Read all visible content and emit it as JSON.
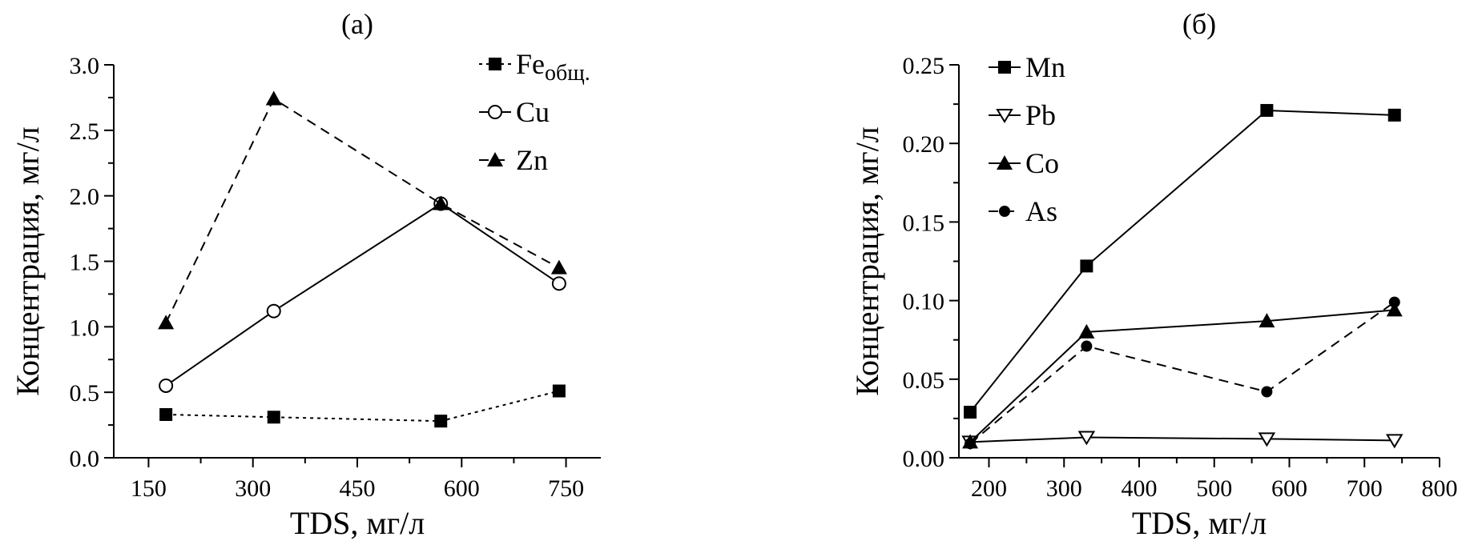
{
  "chart_data": [
    {
      "type": "line",
      "title": "(а)",
      "xlabel": "TDS, мг/л",
      "ylabel": "Концентрация, мг/л",
      "xlim": [
        100,
        800
      ],
      "ylim": [
        0,
        3.0
      ],
      "xticks": [
        150,
        300,
        450,
        600,
        750
      ],
      "xtick_labels": [
        "150",
        "300",
        "450",
        "600",
        "750"
      ],
      "yticks": [
        0,
        0.5,
        1.0,
        1.5,
        2.0,
        2.5,
        3.0
      ],
      "ytick_labels": [
        "0.0",
        "0.5",
        "1.0",
        "1.5",
        "2.0",
        "2.5",
        "3.0"
      ],
      "legend_position": "top-right",
      "x": [
        175,
        330,
        570,
        740
      ],
      "series": [
        {
          "name": "Fe",
          "name_sub": "общ.",
          "marker": "square-filled",
          "dash": "dotted",
          "values": [
            0.33,
            0.31,
            0.28,
            0.51
          ]
        },
        {
          "name": "Cu",
          "marker": "circle-open",
          "dash": "solid",
          "values": [
            0.55,
            1.12,
            1.94,
            1.33
          ]
        },
        {
          "name": "Zn",
          "marker": "triangle-filled",
          "dash": "dashed",
          "values": [
            1.03,
            2.74,
            1.94,
            1.45
          ]
        }
      ]
    },
    {
      "type": "line",
      "title": "(б)",
      "xlabel": "TDS, мг/л",
      "ylabel": "Концентрация, мг/л",
      "xlim": [
        160,
        800
      ],
      "ylim": [
        0,
        0.25
      ],
      "xticks": [
        200,
        300,
        400,
        500,
        600,
        700,
        800
      ],
      "xtick_labels": [
        "200",
        "300",
        "400",
        "500",
        "600",
        "700",
        "800"
      ],
      "yticks": [
        0,
        0.05,
        0.1,
        0.15,
        0.2,
        0.25
      ],
      "ytick_labels": [
        "0.00",
        "0.05",
        "0.10",
        "0.15",
        "0.20",
        "0.25"
      ],
      "legend_position": "top-left",
      "x": [
        175,
        330,
        570,
        740
      ],
      "series": [
        {
          "name": "Mn",
          "marker": "square-filled",
          "dash": "solid",
          "values": [
            0.029,
            0.122,
            0.221,
            0.218
          ]
        },
        {
          "name": "Pb",
          "marker": "triangle-down-open",
          "dash": "solid",
          "values": [
            0.01,
            0.013,
            0.012,
            0.011
          ]
        },
        {
          "name": "Co",
          "marker": "triangle-filled",
          "dash": "solid",
          "values": [
            0.01,
            0.08,
            0.087,
            0.094
          ]
        },
        {
          "name": "As",
          "marker": "circle-filled",
          "dash": "dashed",
          "values": [
            0.009,
            0.071,
            0.042,
            0.099
          ]
        }
      ]
    }
  ]
}
